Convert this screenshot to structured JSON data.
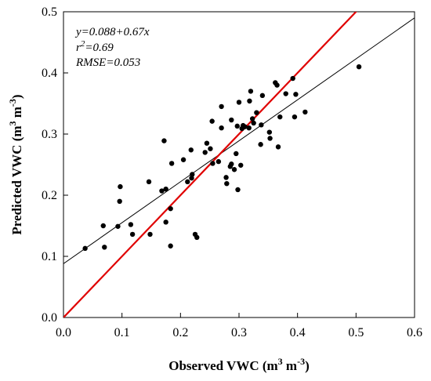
{
  "chart_data": {
    "type": "scatter",
    "title": "",
    "xlabel_main": "Observed VWC (m",
    "xlabel_sup1": "3",
    "xlabel_mid": " m",
    "xlabel_sup2": "-3",
    "xlabel_end": ")",
    "ylabel_main": "Predicted VWC (m",
    "ylabel_sup1": "3",
    "ylabel_mid": " m",
    "ylabel_sup2": "-3",
    "ylabel_end": ")",
    "xlim": [
      0.0,
      0.6
    ],
    "ylim": [
      0.0,
      0.5
    ],
    "x_ticks": [
      "0.0",
      "0.1",
      "0.2",
      "0.3",
      "0.4",
      "0.5",
      "0.6"
    ],
    "y_ticks": [
      "0.0",
      "0.1",
      "0.2",
      "0.3",
      "0.4",
      "0.5"
    ],
    "annotations": {
      "equation": "y=0.088+0.67x",
      "r2_base": "r",
      "r2_sup": "2",
      "r2_value": "=0.69",
      "rmse": "RMSE=0.053"
    },
    "regression_line": {
      "intercept": 0.088,
      "slope": 0.67,
      "color": "#000000"
    },
    "one_to_one_line": {
      "color": "#e00000"
    },
    "grid": false,
    "points": [
      [
        0.037,
        0.113
      ],
      [
        0.068,
        0.15
      ],
      [
        0.07,
        0.115
      ],
      [
        0.093,
        0.149
      ],
      [
        0.096,
        0.19
      ],
      [
        0.097,
        0.214
      ],
      [
        0.115,
        0.152
      ],
      [
        0.118,
        0.136
      ],
      [
        0.146,
        0.222
      ],
      [
        0.148,
        0.136
      ],
      [
        0.168,
        0.207
      ],
      [
        0.172,
        0.289
      ],
      [
        0.175,
        0.21
      ],
      [
        0.175,
        0.156
      ],
      [
        0.183,
        0.178
      ],
      [
        0.183,
        0.117
      ],
      [
        0.185,
        0.252
      ],
      [
        0.205,
        0.258
      ],
      [
        0.212,
        0.222
      ],
      [
        0.218,
        0.274
      ],
      [
        0.219,
        0.228
      ],
      [
        0.22,
        0.234
      ],
      [
        0.225,
        0.136
      ],
      [
        0.228,
        0.131
      ],
      [
        0.242,
        0.27
      ],
      [
        0.245,
        0.285
      ],
      [
        0.251,
        0.276
      ],
      [
        0.254,
        0.321
      ],
      [
        0.255,
        0.252
      ],
      [
        0.265,
        0.255
      ],
      [
        0.27,
        0.345
      ],
      [
        0.27,
        0.31
      ],
      [
        0.278,
        0.229
      ],
      [
        0.279,
        0.219
      ],
      [
        0.285,
        0.247
      ],
      [
        0.287,
        0.251
      ],
      [
        0.287,
        0.323
      ],
      [
        0.292,
        0.242
      ],
      [
        0.295,
        0.268
      ],
      [
        0.297,
        0.313
      ],
      [
        0.298,
        0.209
      ],
      [
        0.3,
        0.352
      ],
      [
        0.303,
        0.249
      ],
      [
        0.305,
        0.309
      ],
      [
        0.307,
        0.314
      ],
      [
        0.31,
        0.312
      ],
      [
        0.317,
        0.31
      ],
      [
        0.318,
        0.354
      ],
      [
        0.32,
        0.37
      ],
      [
        0.323,
        0.325
      ],
      [
        0.325,
        0.318
      ],
      [
        0.33,
        0.335
      ],
      [
        0.337,
        0.283
      ],
      [
        0.338,
        0.315
      ],
      [
        0.34,
        0.363
      ],
      [
        0.352,
        0.303
      ],
      [
        0.353,
        0.293
      ],
      [
        0.362,
        0.384
      ],
      [
        0.365,
        0.38
      ],
      [
        0.367,
        0.279
      ],
      [
        0.37,
        0.328
      ],
      [
        0.38,
        0.366
      ],
      [
        0.392,
        0.391
      ],
      [
        0.395,
        0.328
      ],
      [
        0.397,
        0.365
      ],
      [
        0.413,
        0.336
      ],
      [
        0.505,
        0.41
      ]
    ]
  }
}
